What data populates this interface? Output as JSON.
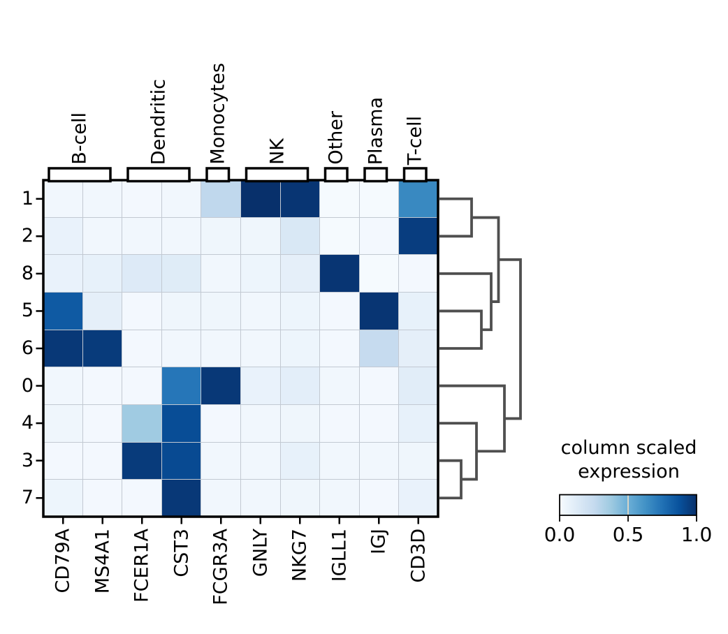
{
  "figure": {
    "background": "#ffffff"
  },
  "chart_data": {
    "type": "heatmap",
    "rows": [
      "1",
      "2",
      "8",
      "5",
      "6",
      "0",
      "4",
      "3",
      "7"
    ],
    "columns": [
      "CD79A",
      "MS4A1",
      "FCER1A",
      "CST3",
      "FCGR3A",
      "GNLY",
      "NKG7",
      "IGLL1",
      "IGJ",
      "CD3D"
    ],
    "values": [
      [
        0.03,
        0.03,
        0.02,
        0.03,
        0.27,
        1.0,
        0.98,
        0.01,
        0.01,
        0.66
      ],
      [
        0.07,
        0.03,
        0.03,
        0.03,
        0.04,
        0.04,
        0.15,
        0.01,
        0.02,
        0.95
      ],
      [
        0.07,
        0.08,
        0.13,
        0.12,
        0.03,
        0.05,
        0.09,
        0.98,
        0.01,
        0.02
      ],
      [
        0.84,
        0.09,
        0.02,
        0.04,
        0.04,
        0.03,
        0.05,
        0.02,
        0.98,
        0.08
      ],
      [
        0.97,
        0.96,
        0.02,
        0.03,
        0.03,
        0.03,
        0.05,
        0.02,
        0.25,
        0.09
      ],
      [
        0.03,
        0.02,
        0.02,
        0.73,
        0.97,
        0.07,
        0.1,
        0.03,
        0.02,
        0.11
      ],
      [
        0.04,
        0.02,
        0.37,
        0.89,
        0.02,
        0.03,
        0.04,
        0.02,
        0.02,
        0.08
      ],
      [
        0.02,
        0.02,
        0.96,
        0.9,
        0.03,
        0.03,
        0.08,
        0.03,
        0.03,
        0.04
      ],
      [
        0.05,
        0.02,
        0.02,
        0.97,
        0.03,
        0.03,
        0.04,
        0.03,
        0.02,
        0.07
      ]
    ],
    "value_range": [
      0,
      1
    ],
    "column_groups": [
      {
        "label": "B-cell",
        "start": 0,
        "end": 1
      },
      {
        "label": "Dendritic",
        "start": 2,
        "end": 3
      },
      {
        "label": "Monocytes",
        "start": 4,
        "end": 4
      },
      {
        "label": "NK",
        "start": 5,
        "end": 6
      },
      {
        "label": "Other",
        "start": 7,
        "end": 7
      },
      {
        "label": "Plasma",
        "start": 8,
        "end": 8
      },
      {
        "label": "T-cell",
        "start": 9,
        "end": 9
      }
    ],
    "row_dendrogram": {
      "merges": [
        {
          "name": "m12",
          "children": [
            "leaf:1",
            "leaf:2"
          ],
          "depth": 675
        },
        {
          "name": "m56",
          "children": [
            "leaf:5",
            "leaf:6"
          ],
          "depth": 689
        },
        {
          "name": "m8_56",
          "children": [
            "leaf:8",
            "m56"
          ],
          "depth": 703
        },
        {
          "name": "mTop",
          "children": [
            "m12",
            "m8_56"
          ],
          "depth": 713.5
        },
        {
          "name": "m37",
          "children": [
            "leaf:3",
            "leaf:7"
          ],
          "depth": 660
        },
        {
          "name": "m4_37",
          "children": [
            "leaf:4",
            "m37"
          ],
          "depth": 682
        },
        {
          "name": "m0_437",
          "children": [
            "leaf:0",
            "m4_37"
          ],
          "depth": 722
        },
        {
          "name": "root",
          "children": [
            "mTop",
            "m0_437"
          ],
          "depth": 745
        }
      ]
    },
    "colormap": {
      "name": "Blues",
      "stops": [
        [
          0.0,
          "#f7fbff"
        ],
        [
          0.125,
          "#deebf7"
        ],
        [
          0.25,
          "#c6dbef"
        ],
        [
          0.375,
          "#9ecae1"
        ],
        [
          0.5,
          "#6baed6"
        ],
        [
          0.625,
          "#4292c6"
        ],
        [
          0.75,
          "#2171b5"
        ],
        [
          0.875,
          "#08519c"
        ],
        [
          1.0,
          "#08306b"
        ]
      ]
    },
    "legend": {
      "title_line1": "column scaled",
      "title_line2": "expression",
      "tick_labels": [
        "0.0",
        "0.5",
        "1.0"
      ],
      "tick_values": [
        0,
        0.5,
        1
      ],
      "range": [
        0,
        1
      ]
    }
  },
  "colors": {
    "dendrogram": "#4f4f4f",
    "grid_line": "#c2c9d2",
    "frame": "#000000",
    "bracket_fill": "#ffffff",
    "colorbar_midline": "#d6d5c8"
  }
}
